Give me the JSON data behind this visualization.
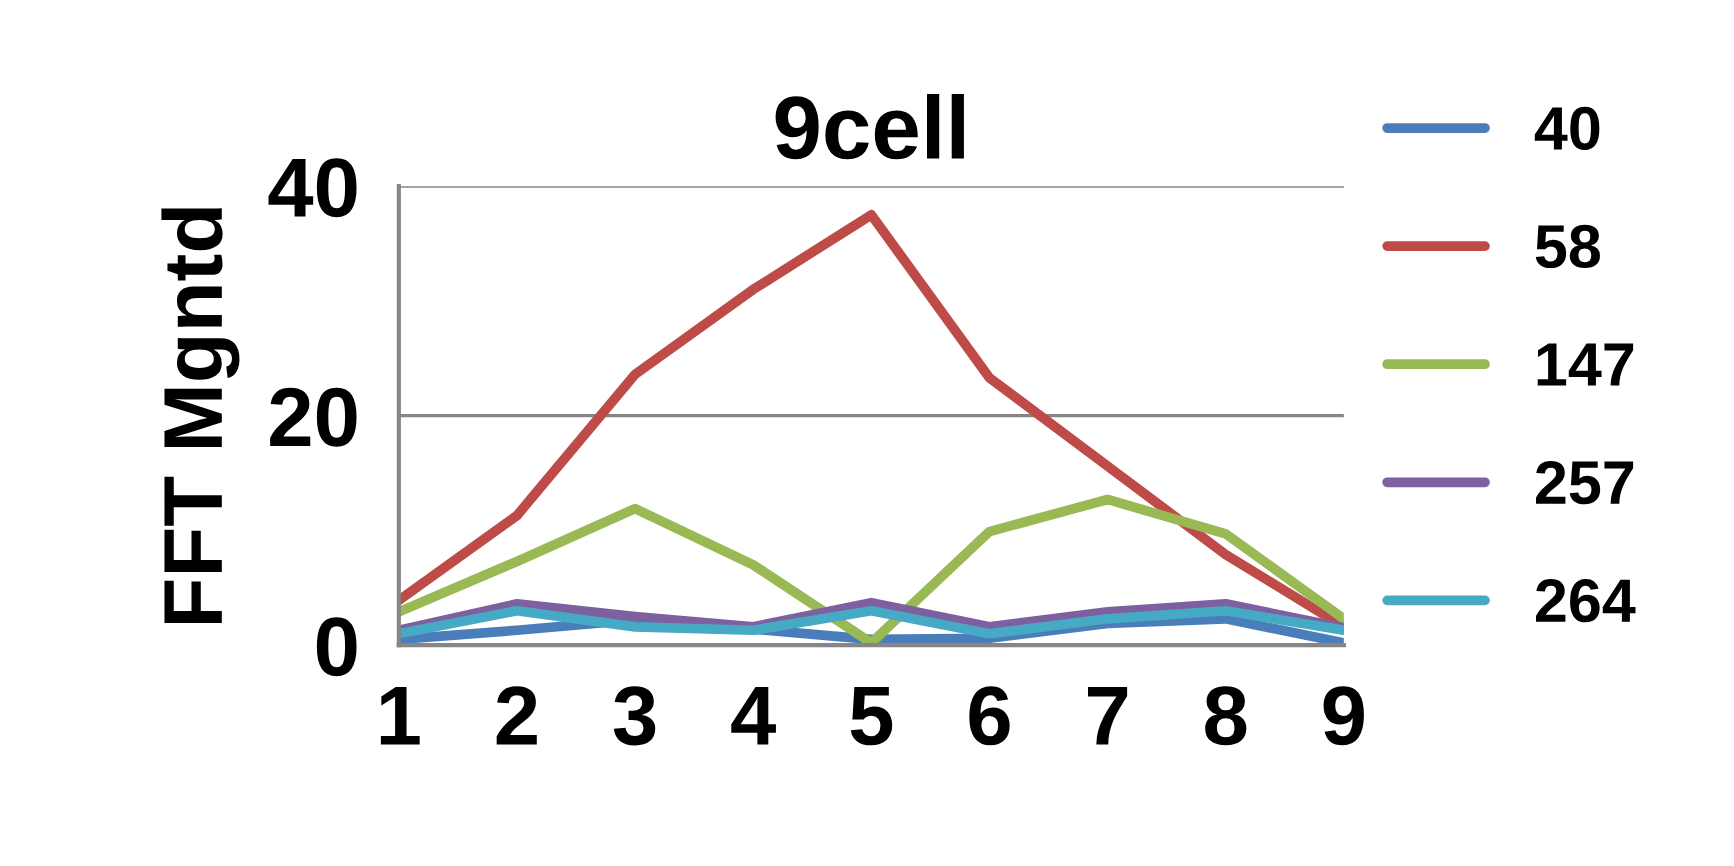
{
  "chart_data": {
    "type": "line",
    "title": "9cell",
    "ylabel": "FFT Mgntd",
    "categories": [
      "1",
      "2",
      "3",
      "4",
      "5",
      "6",
      "7",
      "8",
      "9"
    ],
    "series": [
      {
        "name": "40",
        "color": "#4a7ebb",
        "values": [
          0.5,
          1.3,
          2.2,
          1.4,
          0.5,
          0.6,
          1.9,
          2.3,
          0.2
        ]
      },
      {
        "name": "58",
        "color": "#be4b48",
        "values": [
          3.9,
          11.3,
          23.6,
          31,
          37.5,
          23.3,
          15.6,
          7.9,
          1.6
        ]
      },
      {
        "name": "147",
        "color": "#98b954",
        "values": [
          2.9,
          7.3,
          11.9,
          7,
          0.2,
          9.9,
          12.7,
          9.7,
          2.3
        ]
      },
      {
        "name": "257",
        "color": "#7d60a0",
        "values": [
          1.3,
          3.6,
          2.5,
          1.6,
          3.7,
          1.6,
          2.9,
          3.6,
          1.5
        ]
      },
      {
        "name": "264",
        "color": "#46aac5",
        "values": [
          1,
          3,
          1.6,
          1.3,
          3,
          1,
          2.3,
          3,
          1.3
        ]
      }
    ],
    "ylim": [
      0,
      40
    ],
    "yticks": [
      0,
      20,
      40
    ],
    "grid": "y",
    "legend": "right",
    "marker": "none",
    "line_style": "solid"
  }
}
